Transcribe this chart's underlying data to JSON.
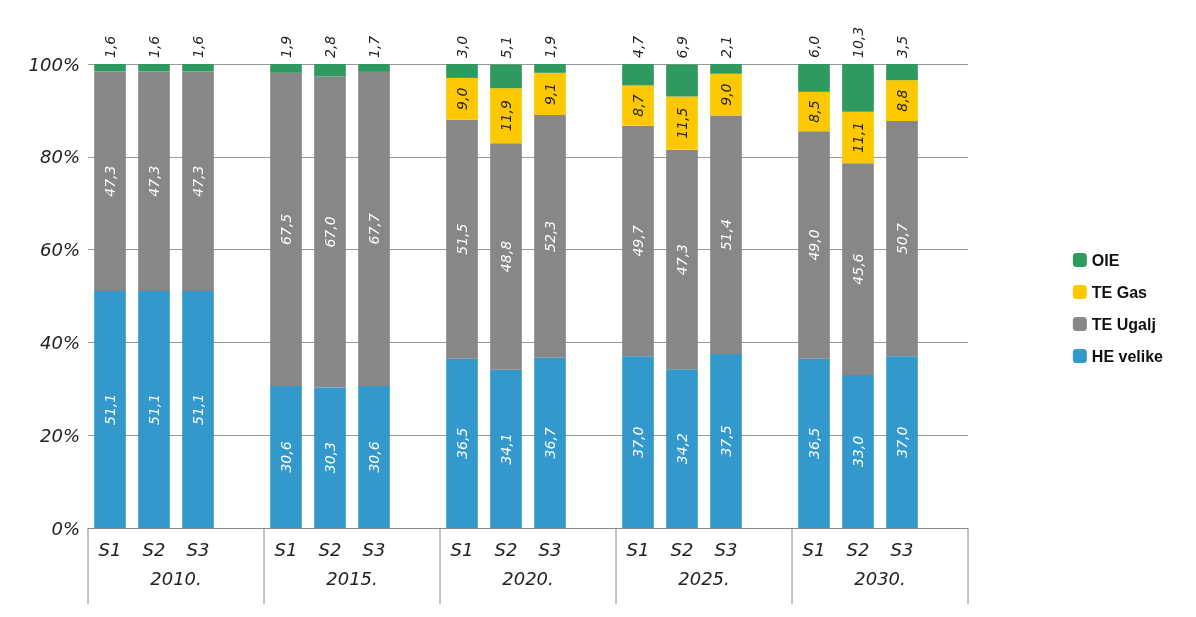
{
  "chart_data": {
    "type": "bar",
    "stacked": true,
    "categories": [
      "S1",
      "S2",
      "S3",
      null,
      "S1",
      "S2",
      "S3",
      null,
      "S1",
      "S2",
      "S3",
      null,
      "S1",
      "S2",
      "S3",
      null,
      "S1",
      "S2",
      "S3",
      null
    ],
    "annotations": [
      "2010.",
      "2015.",
      "2020.",
      "2025.",
      "2030."
    ],
    "series": [
      {
        "name": "HE velike",
        "color": "#3399cc",
        "values": [
          51.1,
          51.1,
          51.1,
          null,
          30.6,
          30.3,
          30.6,
          null,
          36.5,
          34.1,
          36.7,
          null,
          37.0,
          34.2,
          37.5,
          null,
          36.5,
          33.0,
          37.0,
          null
        ],
        "value_labels": [
          "51,1",
          "51,1",
          "51,1",
          null,
          "30,6",
          "30,3",
          "30,6",
          null,
          "36,5",
          "34,1",
          "36,7",
          null,
          "37,0",
          "34,2",
          "37,5",
          null,
          "36,5",
          "33,0",
          "37,0",
          null
        ]
      },
      {
        "name": "TE Ugalj",
        "color": "#878787",
        "values": [
          47.3,
          47.3,
          47.3,
          null,
          67.5,
          67.0,
          67.7,
          null,
          51.5,
          48.8,
          52.3,
          null,
          49.7,
          47.3,
          51.4,
          null,
          49.0,
          45.6,
          50.7,
          null
        ],
        "value_labels": [
          "47,3",
          "47,3",
          "47,3",
          null,
          "67,5",
          "67,0",
          "67,7",
          null,
          "51,5",
          "48,8",
          "52,3",
          null,
          "49,7",
          "47,3",
          "51,4",
          null,
          "49,0",
          "45,6",
          "50,7",
          null
        ]
      },
      {
        "name": "TE Gas",
        "color": "#fdc800",
        "values": [
          null,
          null,
          null,
          null,
          null,
          null,
          null,
          null,
          9.0,
          11.9,
          9.1,
          null,
          8.7,
          11.5,
          9.0,
          null,
          8.5,
          11.1,
          8.8,
          null
        ],
        "value_labels": [
          null,
          null,
          null,
          null,
          null,
          null,
          null,
          null,
          "9,0",
          "11,9",
          "9,1",
          null,
          "8,7",
          "11,5",
          "9,0",
          null,
          "8,5",
          "11,1",
          "8,8",
          null
        ]
      },
      {
        "name": "OIE",
        "color": "#2e9a60",
        "values": [
          1.6,
          1.6,
          1.6,
          null,
          1.9,
          2.8,
          1.7,
          null,
          3.0,
          5.1,
          1.9,
          null,
          4.7,
          6.9,
          2.1,
          null,
          6.0,
          10.3,
          3.5,
          null
        ],
        "value_labels": [
          "1,6",
          "1,6",
          "1,6",
          null,
          "1,9",
          "2,8",
          "1,7",
          null,
          "3,0",
          "5,1",
          "1,9",
          null,
          "4,7",
          "6,9",
          "2,1",
          null,
          "6,0",
          "10,3",
          "3,5",
          null
        ]
      }
    ],
    "ylim": [
      0,
      100
    ],
    "yticks": [
      {
        "value": 0,
        "label": "0%"
      },
      {
        "value": 20,
        "label": "20%"
      },
      {
        "value": 40,
        "label": "40%"
      },
      {
        "value": 60,
        "label": "60%"
      },
      {
        "value": 80,
        "label": "80%"
      },
      {
        "value": 100,
        "label": "100%"
      }
    ],
    "grid": "y",
    "legend": "right"
  }
}
